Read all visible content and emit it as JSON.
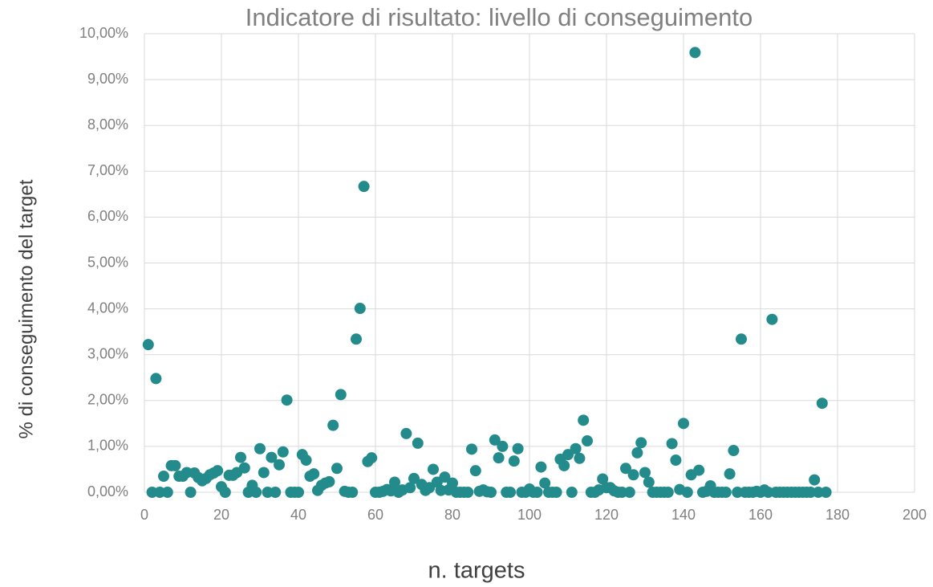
{
  "chart_data": {
    "type": "scatter",
    "title": "Indicatore di risultato: livello di conseguimento",
    "x_label": "n. targets",
    "y_label": "% di conseguimento del target",
    "color": "#238b8b",
    "grid": true,
    "xlim": [
      0,
      200
    ],
    "xticks": [
      0,
      20,
      40,
      60,
      80,
      100,
      120,
      140,
      160,
      180,
      200
    ],
    "ylim": [
      0,
      10
    ],
    "yticks": [
      {
        "value": 0,
        "label": "0,00%"
      },
      {
        "value": 1,
        "label": "1,00%"
      },
      {
        "value": 2,
        "label": "2,00%"
      },
      {
        "value": 3,
        "label": "3,00%"
      },
      {
        "value": 4,
        "label": "4,00%"
      },
      {
        "value": 5,
        "label": "5,00%"
      },
      {
        "value": 6,
        "label": "6,00%"
      },
      {
        "value": 7,
        "label": "7,00%"
      },
      {
        "value": 8,
        "label": "8,00%"
      },
      {
        "value": 9,
        "label": "9,00%"
      },
      {
        "value": 10,
        "label": "10,00%"
      }
    ],
    "x": [
      1,
      2,
      3,
      4,
      5,
      6,
      7,
      8,
      9,
      10,
      11,
      12,
      13,
      14,
      15,
      16,
      17,
      18,
      19,
      20,
      21,
      22,
      23,
      24,
      25,
      26,
      27,
      28,
      29,
      30,
      31,
      32,
      33,
      34,
      35,
      36,
      37,
      38,
      39,
      40,
      41,
      42,
      43,
      44,
      45,
      46,
      47,
      48,
      49,
      50,
      51,
      52,
      53,
      54,
      55,
      56,
      57,
      58,
      59,
      60,
      61,
      62,
      63,
      64,
      65,
      66,
      67,
      68,
      69,
      70,
      71,
      72,
      73,
      74,
      75,
      76,
      77,
      78,
      79,
      80,
      81,
      82,
      83,
      84,
      85,
      86,
      87,
      88,
      89,
      90,
      91,
      92,
      93,
      94,
      95,
      96,
      97,
      98,
      99,
      100,
      101,
      102,
      103,
      104,
      105,
      106,
      107,
      108,
      109,
      110,
      111,
      112,
      113,
      114,
      115,
      116,
      117,
      118,
      119,
      120,
      121,
      122,
      123,
      124,
      125,
      126,
      127,
      128,
      129,
      130,
      131,
      132,
      133,
      134,
      135,
      136,
      137,
      138,
      139,
      140,
      141,
      142,
      143,
      144,
      145,
      146,
      147,
      148,
      149,
      150,
      151,
      152,
      153,
      154,
      155,
      156,
      157,
      158,
      159,
      160,
      161,
      162,
      163,
      164,
      165,
      166,
      167,
      168,
      169,
      170,
      171,
      172,
      173,
      174,
      175,
      176,
      177
    ],
    "values": [
      3.22,
      0,
      2.48,
      0,
      0.35,
      0,
      0.58,
      0.58,
      0.35,
      0.35,
      0.43,
      0,
      0.42,
      0.32,
      0.25,
      0.3,
      0.38,
      0.42,
      0.47,
      0.12,
      0,
      0.37,
      0.37,
      0.43,
      0.76,
      0.53,
      0,
      0.15,
      0,
      0.95,
      0.43,
      0,
      0.76,
      0,
      0.6,
      0.88,
      2.01,
      0,
      0,
      0,
      0.82,
      0.7,
      0.35,
      0.4,
      0.04,
      0.15,
      0.2,
      0.23,
      1.46,
      0.52,
      2.13,
      0.02,
      0,
      0,
      3.34,
      4.01,
      6.67,
      0.67,
      0.75,
      0,
      0,
      0.02,
      0.06,
      0.03,
      0.22,
      0,
      0.05,
      1.28,
      0.1,
      0.3,
      1.07,
      0.17,
      0.04,
      0.1,
      0.5,
      0.22,
      0.04,
      0.33,
      0.05,
      0.2,
      0,
      0,
      0,
      0,
      0.94,
      0.47,
      0.02,
      0.05,
      0.01,
      0,
      1.14,
      0.75,
      1.0,
      0,
      0,
      0.68,
      0.95,
      0,
      0,
      0.07,
      0,
      0,
      0.55,
      0.2,
      0,
      0,
      0,
      0.72,
      0.58,
      0.82,
      0,
      0.95,
      0.74,
      1.57,
      1.12,
      0,
      0,
      0.05,
      0.29,
      0.1,
      0.1,
      0.03,
      0,
      0,
      0.52,
      0,
      0.38,
      0.86,
      1.08,
      0.43,
      0.22,
      0,
      0,
      0,
      0,
      0,
      1.06,
      0.7,
      0.06,
      1.5,
      0,
      0.38,
      9.59,
      0.48,
      0,
      0.02,
      0.14,
      0,
      0,
      0,
      0,
      0.4,
      0.91,
      0,
      3.34,
      0,
      0,
      0,
      0.02,
      0,
      0.05,
      0,
      3.77,
      0,
      0,
      0,
      0,
      0,
      0,
      0,
      0,
      0,
      0,
      0.27,
      0,
      1.94,
      0
    ]
  }
}
